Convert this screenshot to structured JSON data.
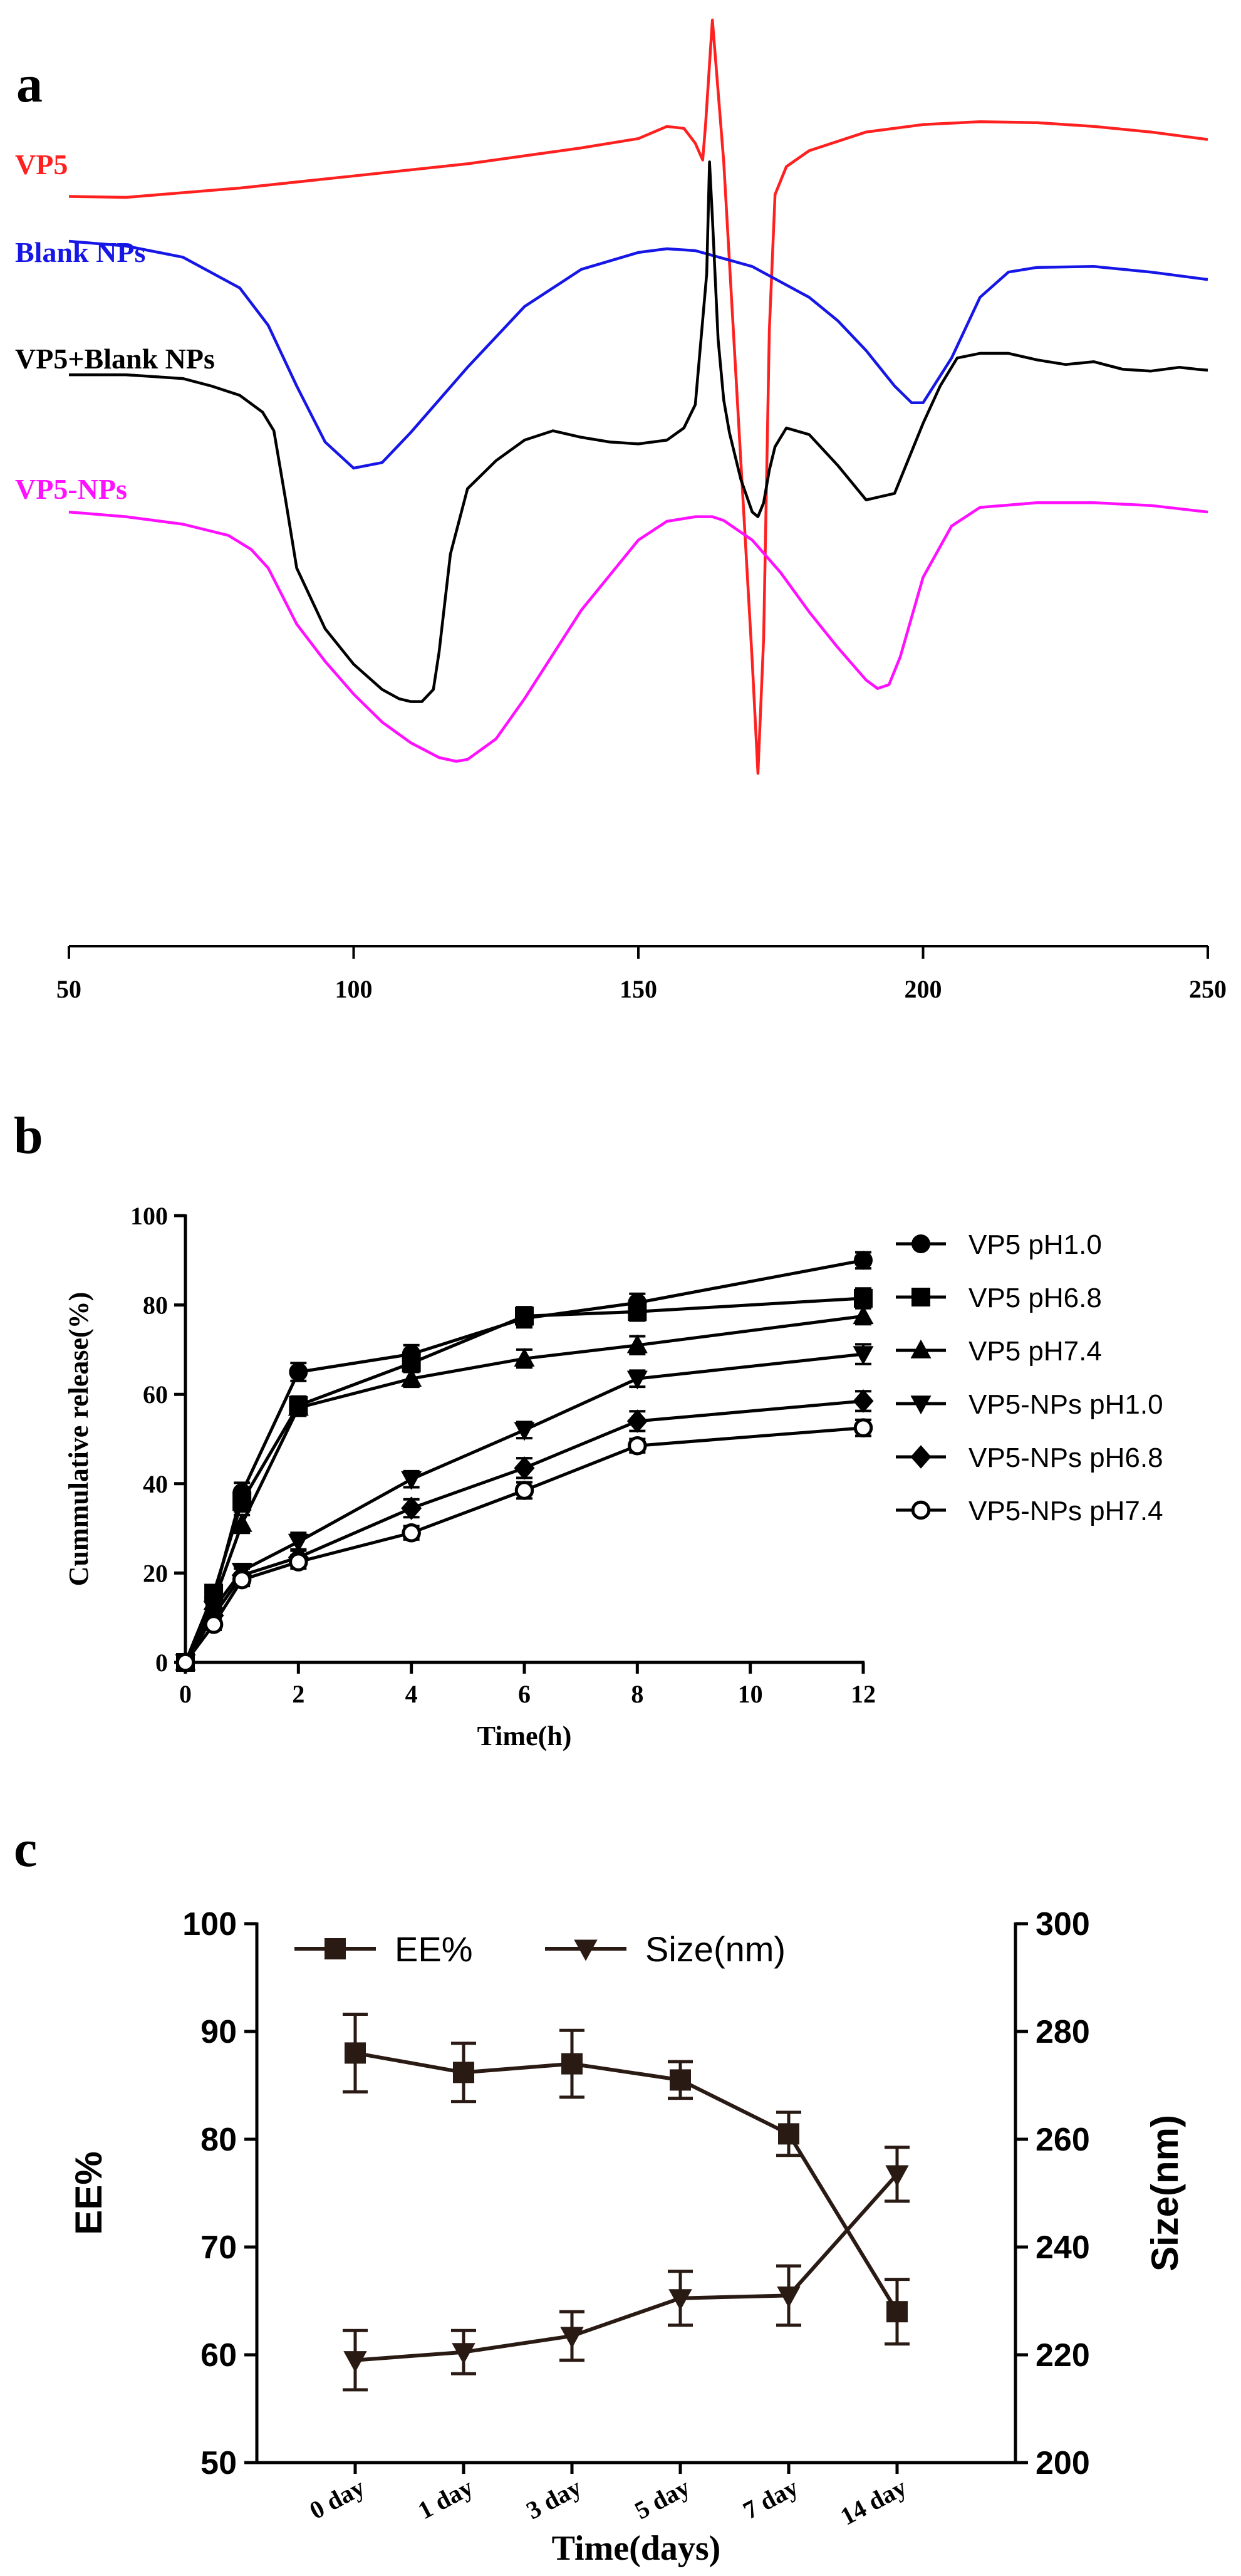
{
  "panel_labels": {
    "a": "a",
    "b": "b",
    "c": "c"
  },
  "chart_data": [
    {
      "id": "a",
      "type": "line",
      "title": "",
      "xlabel": "",
      "ylabel": "",
      "xlim": [
        50,
        250
      ],
      "x_ticks": [
        50,
        100,
        150,
        200,
        250
      ],
      "x_tick_labels": [
        "50",
        "100",
        "150",
        "200",
        "250"
      ],
      "ylim": [
        0,
        100
      ],
      "grid": false,
      "legend": "inline-left",
      "series": [
        {
          "name": "VP5",
          "color": "#ff2020",
          "x": [
            50,
            60,
            80,
            100,
            120,
            140,
            150,
            155,
            158,
            160,
            161.3,
            161.8,
            163,
            165,
            170,
            171,
            172,
            173,
            174,
            176,
            180,
            190,
            200,
            210,
            220,
            230,
            240,
            250
          ],
          "y": [
            80.3,
            80.2,
            81.2,
            82.5,
            83.8,
            85.5,
            86.5,
            87.8,
            87.6,
            86.0,
            84.2,
            88.0,
            99.2,
            84.0,
            30.5,
            18.5,
            33.0,
            66.0,
            80.5,
            83.5,
            85.2,
            87.2,
            88.0,
            88.3,
            88.2,
            87.8,
            87.2,
            86.4
          ]
        },
        {
          "name": "Blank NPs",
          "color": "#1616e6",
          "x": [
            50,
            60,
            70,
            80,
            85,
            90,
            95,
            100,
            105,
            110,
            120,
            130,
            140,
            150,
            155,
            160,
            170,
            180,
            185,
            190,
            195,
            198,
            200,
            205,
            210,
            215,
            220,
            230,
            240,
            250
          ],
          "y": [
            75.5,
            75.0,
            73.8,
            70.5,
            66.5,
            60.0,
            54.0,
            51.2,
            51.8,
            55.0,
            62.0,
            68.5,
            72.5,
            74.3,
            74.7,
            74.5,
            72.8,
            69.5,
            67.0,
            63.8,
            60.0,
            58.2,
            58.2,
            63.0,
            69.5,
            72.2,
            72.7,
            72.8,
            72.2,
            71.4
          ]
        },
        {
          "name": "VP5+Blank NPs",
          "color": "#000000",
          "x": [
            50,
            60,
            70,
            75,
            80,
            84,
            86,
            88,
            90,
            95,
            100,
            105,
            108,
            110,
            112,
            114,
            115,
            117,
            120,
            125,
            130,
            135,
            140,
            145,
            150,
            155,
            158,
            160,
            162,
            162.5,
            163,
            164,
            165,
            166,
            168,
            170,
            171,
            172,
            173,
            174,
            176,
            180,
            185,
            190,
            195,
            200,
            203,
            206,
            210,
            215,
            220,
            225,
            230,
            235,
            240,
            245,
            248,
            250
          ],
          "y": [
            61.2,
            61.2,
            60.8,
            60.0,
            59.0,
            57.2,
            55.2,
            48.0,
            40.5,
            34.0,
            30.2,
            27.5,
            26.5,
            26.2,
            26.2,
            27.5,
            31.5,
            42.0,
            49.0,
            52.0,
            54.2,
            55.2,
            54.5,
            54.0,
            53.8,
            54.2,
            55.5,
            58.0,
            72.0,
            84.0,
            78.0,
            65.0,
            58.5,
            55.0,
            50.0,
            46.5,
            46.0,
            47.5,
            51.0,
            53.5,
            55.5,
            54.8,
            51.5,
            47.8,
            48.5,
            56.0,
            60.0,
            63.0,
            63.5,
            63.5,
            62.8,
            62.3,
            62.6,
            61.8,
            61.6,
            62.0,
            61.8,
            61.7
          ]
        },
        {
          "name": "VP5-NPs",
          "color": "#ff10ff",
          "x": [
            50,
            60,
            70,
            78,
            82,
            85,
            90,
            95,
            100,
            105,
            110,
            115,
            118,
            120,
            125,
            130,
            140,
            150,
            155,
            160,
            163,
            165,
            170,
            175,
            180,
            185,
            190,
            192,
            194,
            196,
            200,
            205,
            210,
            220,
            230,
            240,
            250
          ],
          "y": [
            46.5,
            46.0,
            45.2,
            44.0,
            42.5,
            40.5,
            34.5,
            30.5,
            27.0,
            24.0,
            21.8,
            20.2,
            19.8,
            20.0,
            22.2,
            26.5,
            36.0,
            43.5,
            45.5,
            46.0,
            46.0,
            45.6,
            43.5,
            40.0,
            35.8,
            32.0,
            28.5,
            27.6,
            28.0,
            31.0,
            39.5,
            45.0,
            47.0,
            47.5,
            47.5,
            47.2,
            46.5
          ]
        }
      ]
    },
    {
      "id": "b",
      "type": "line",
      "title": "",
      "xlabel": "Time(h)",
      "ylabel": "Cummulative release(%)",
      "xlim": [
        0,
        12
      ],
      "ylim": [
        0,
        100
      ],
      "x_ticks": [
        0,
        2,
        4,
        6,
        8,
        10,
        12
      ],
      "x_tick_labels": [
        "0",
        "2",
        "4",
        "6",
        "8",
        "10",
        "12"
      ],
      "y_ticks": [
        0,
        20,
        40,
        60,
        80,
        100
      ],
      "y_tick_labels": [
        "0",
        "20",
        "40",
        "60",
        "80",
        "100"
      ],
      "grid": false,
      "legend": "right",
      "x": [
        0,
        0.5,
        1,
        2,
        4,
        6,
        8,
        12
      ],
      "series": [
        {
          "name": "VP5 pH1.0",
          "marker": "circle",
          "values": [
            0,
            14.5,
            38,
            65,
            69,
            77,
            80.5,
            90
          ],
          "errors": [
            0,
            1.8,
            2.2,
            2.0,
            2.0,
            2.0,
            2.0,
            1.8
          ]
        },
        {
          "name": "VP5 pH6.8",
          "marker": "square",
          "values": [
            0,
            15.5,
            36,
            57.5,
            67,
            77.5,
            78.5,
            81.5
          ],
          "errors": [
            0,
            1.8,
            2.2,
            2.0,
            2.0,
            2.0,
            2.0,
            2.2
          ]
        },
        {
          "name": "VP5 pH7.4",
          "marker": "triangle",
          "values": [
            0,
            13.5,
            31,
            57,
            63.5,
            68,
            71,
            77.5
          ],
          "errors": [
            0,
            1.6,
            2.0,
            1.8,
            1.8,
            2.0,
            2.0,
            1.8
          ]
        },
        {
          "name": "VP5-NPs pH1.0",
          "marker": "triangle-down",
          "values": [
            0,
            12,
            20.5,
            27,
            41,
            52,
            63.5,
            69
          ],
          "errors": [
            0,
            1.4,
            1.5,
            2.0,
            1.8,
            1.8,
            1.8,
            2.2
          ]
        },
        {
          "name": "VP5-NPs pH6.8",
          "marker": "diamond",
          "values": [
            0,
            10.5,
            19.5,
            23.5,
            34.5,
            43.5,
            54,
            58.5
          ],
          "errors": [
            0,
            1.2,
            1.5,
            1.8,
            2.0,
            2.2,
            2.2,
            2.2
          ]
        },
        {
          "name": "VP5-NPs pH7.4",
          "marker": "circle-open",
          "values": [
            0,
            8.5,
            18.5,
            22.5,
            29,
            38.5,
            48.5,
            52.5
          ],
          "errors": [
            0,
            1.2,
            1.4,
            1.5,
            1.5,
            1.8,
            1.5,
            1.8
          ]
        }
      ]
    },
    {
      "id": "c",
      "type": "line",
      "title": "",
      "xlabel": "Time(days)",
      "ylabel": "EE%",
      "ylabel_right": "Size(nm)",
      "categories": [
        "0 day",
        "1 day",
        "3 day",
        "5 day",
        "7 day",
        "14 day"
      ],
      "ylim": [
        50,
        100
      ],
      "ylim_right": [
        200,
        300
      ],
      "y_ticks": [
        50,
        60,
        70,
        80,
        90,
        100
      ],
      "y_tick_labels": [
        "50",
        "60",
        "70",
        "80",
        "90",
        "100"
      ],
      "y_ticks_right": [
        200,
        220,
        240,
        260,
        280,
        300
      ],
      "y_tick_labels_right": [
        "200",
        "220",
        "240",
        "260",
        "280",
        "300"
      ],
      "grid": false,
      "legend": "top",
      "series": [
        {
          "name": "EE%",
          "marker": "square",
          "axis": "left",
          "values": [
            88,
            86.2,
            87,
            85.5,
            80.5,
            64
          ],
          "errors": [
            3.6,
            2.7,
            3.1,
            1.7,
            2.0,
            3.0
          ]
        },
        {
          "name": "Size(nm)",
          "marker": "triangle-down",
          "axis": "right",
          "values": [
            219,
            220.5,
            223.5,
            230.5,
            231,
            253.5
          ],
          "errors": [
            5.5,
            4.0,
            4.5,
            5.0,
            5.5,
            5.0
          ]
        }
      ]
    }
  ]
}
